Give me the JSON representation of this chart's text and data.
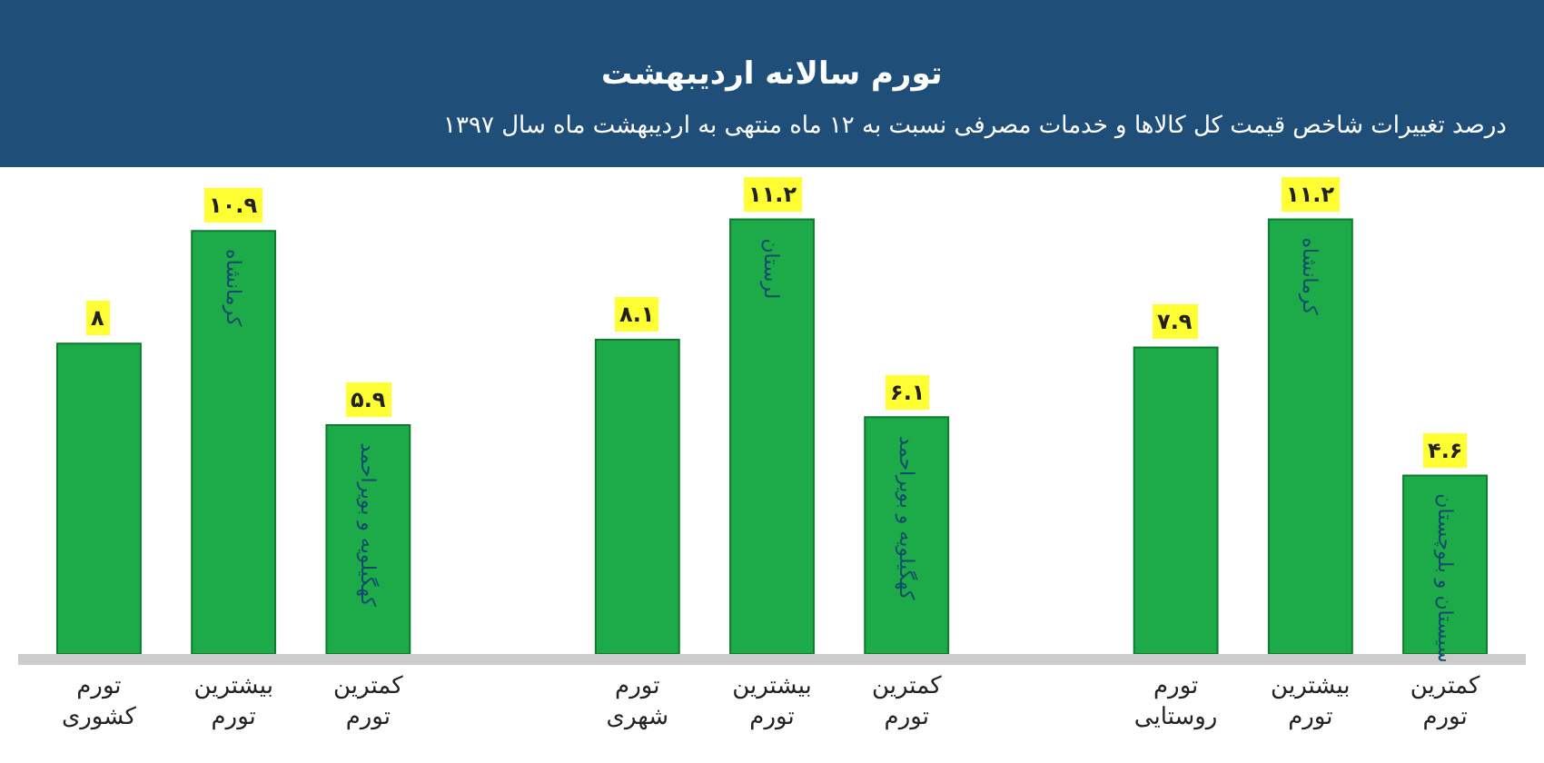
{
  "chart_data": {
    "type": "bar",
    "title": "تورم سالانه اردیبهشت",
    "subtitle": "درصد تغییرات شاخص قیمت کل کالاها و خدمات مصرفی نسبت به ۱۲ ماه منتهی به اردیبهشت ماه سال ۱۳۹۷",
    "categories": [
      "تورم کشوری",
      "بیشترین تورم",
      "کمترین تورم",
      null,
      "تورم شهری",
      "بیشترین تورم",
      "کمترین تورم",
      null,
      "تورم روستایی",
      "بیشترین تورم",
      "کمترین تورم"
    ],
    "values": [
      8,
      10.9,
      5.9,
      null,
      8.1,
      11.2,
      6.1,
      null,
      7.9,
      11.2,
      4.6
    ],
    "value_labels": [
      "۸",
      "۱۰.۹",
      "۵.۹",
      null,
      "۸.۱",
      "۱۱.۲",
      "۶.۱",
      null,
      "۷.۹",
      "۱۱.۲",
      "۴.۶"
    ],
    "color": "#1daa48",
    "annotations": [
      "کرمانشاه",
      "کهگیلویه و بویراحمد",
      "لرستان",
      "کهگیلویه و بویراحمد",
      "کرمانشاه",
      "سیستان و بلوچستان"
    ],
    "legend": false
  }
}
